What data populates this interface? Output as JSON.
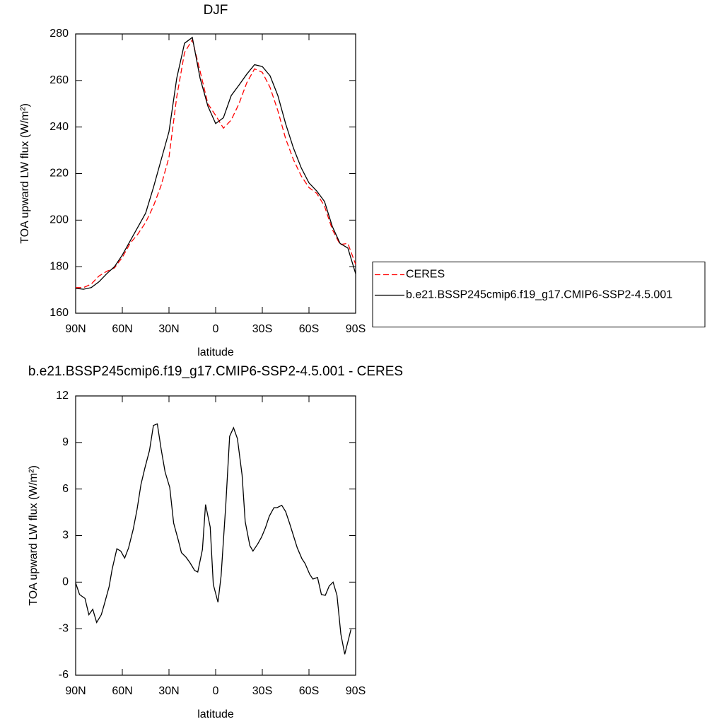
{
  "chart_data": [
    {
      "type": "line",
      "title": "DJF",
      "x_label": "latitude",
      "y_label": "TOA upward LW flux (W/m²)",
      "x": [
        90,
        85,
        80,
        75,
        70,
        65,
        60,
        55,
        50,
        45,
        40,
        35,
        30,
        25,
        20,
        15,
        10,
        5,
        0,
        -5,
        -10,
        -15,
        -20,
        -25,
        -30,
        -35,
        -40,
        -45,
        -50,
        -55,
        -60,
        -65,
        -70,
        -75,
        -80,
        -85,
        -90
      ],
      "series": [
        {
          "name": "CERES",
          "color": "#ff0000",
          "line_style": "dashed",
          "values": [
            171,
            171,
            172.5,
            176,
            178,
            179.5,
            184,
            190,
            194,
            199,
            206,
            215,
            227,
            253,
            272,
            277.5,
            264,
            250,
            245,
            239.5,
            243,
            250,
            259,
            265,
            263.5,
            257,
            247,
            235,
            226,
            219,
            214,
            211.5,
            206,
            196,
            189.5,
            190,
            181
          ]
        },
        {
          "name": "b.e21.BSSP245cmip6.f19_g17.CMIP6-SSP2-4.5.001",
          "color": "#000000",
          "line_style": "solid",
          "values": [
            170.7,
            170.3,
            171,
            173.5,
            177,
            180,
            185,
            191,
            197,
            203,
            214,
            226,
            238,
            261,
            276,
            278.5,
            261,
            249,
            241.5,
            244,
            253.5,
            258,
            262.7,
            266.8,
            266,
            262,
            253.5,
            241.4,
            231,
            222.5,
            216,
            212.5,
            208,
            197.3,
            190,
            188,
            177
          ]
        }
      ],
      "xlim": [
        90,
        -90
      ],
      "xticks": [
        {
          "value": 90,
          "label": "90N"
        },
        {
          "value": 60,
          "label": "60N"
        },
        {
          "value": 30,
          "label": "30N"
        },
        0,
        {
          "value": -30,
          "label": "30S"
        },
        {
          "value": -60,
          "label": "60S"
        },
        {
          "value": -90,
          "label": "90S"
        }
      ],
      "ylim": [
        160,
        280
      ],
      "yticks": [
        160,
        180,
        200,
        220,
        240,
        260,
        280
      ],
      "legend": "right"
    },
    {
      "type": "line",
      "title": "b.e21.BSSP245cmip6.f19_g17.CMIP6-SSP2-4.5.001 - CERES",
      "x_label": "latitude",
      "y_label": "TOA upward LW flux (W/m²)",
      "x": [
        90,
        87.5,
        84,
        81.5,
        79,
        76.5,
        73.5,
        71.5,
        68.5,
        66.5,
        63.5,
        61,
        58.5,
        56,
        53,
        50.5,
        48,
        45.5,
        42.5,
        40,
        37.5,
        35,
        32.5,
        29.5,
        27,
        24,
        22,
        19,
        16.5,
        13.5,
        11.5,
        8.5,
        6.5,
        3.5,
        1.5,
        -1.5,
        -3.5,
        -6.5,
        -9,
        -11.5,
        -14,
        -17,
        -19,
        -22,
        -24,
        -27,
        -29.5,
        -32,
        -34.5,
        -37.5,
        -39.5,
        -42.5,
        -45,
        -47.5,
        -50,
        -52.5,
        -55.5,
        -57.5,
        -60.5,
        -62.5,
        -65.5,
        -68,
        -70.5,
        -73,
        -75.5,
        -78,
        -80.5,
        -83,
        -87
      ],
      "series": [
        {
          "color": "#000000",
          "line_style": "solid",
          "values": [
            -0.05,
            -0.8,
            -1.05,
            -2.1,
            -1.75,
            -2.6,
            -2.1,
            -1.4,
            -0.3,
            0.85,
            2.15,
            2.0,
            1.55,
            2.2,
            3.4,
            4.7,
            6.3,
            7.35,
            8.5,
            10.1,
            10.2,
            8.55,
            7.1,
            6.1,
            3.8,
            2.7,
            1.9,
            1.6,
            1.25,
            0.75,
            0.65,
            2.1,
            5.0,
            3.55,
            -0.15,
            -1.3,
            0.4,
            4.95,
            9.4,
            9.95,
            9.25,
            6.9,
            3.9,
            2.35,
            2.0,
            2.45,
            2.9,
            3.5,
            4.25,
            4.8,
            4.8,
            4.95,
            4.55,
            3.8,
            3.0,
            2.2,
            1.5,
            1.2,
            0.5,
            0.2,
            0.3,
            -0.8,
            -0.85,
            -0.25,
            0,
            -0.85,
            -3.35,
            -4.65,
            -3.05
          ]
        }
      ],
      "xlim": [
        90,
        -90
      ],
      "xticks": [
        {
          "value": 90,
          "label": "90N"
        },
        {
          "value": 60,
          "label": "60N"
        },
        {
          "value": 30,
          "label": "30N"
        },
        0,
        {
          "value": -30,
          "label": "30S"
        },
        {
          "value": -60,
          "label": "60S"
        },
        {
          "value": -90,
          "label": "90S"
        }
      ],
      "ylim": [
        -6,
        12
      ],
      "yticks": [
        -6,
        -3,
        0,
        3,
        6,
        9,
        12
      ]
    }
  ]
}
